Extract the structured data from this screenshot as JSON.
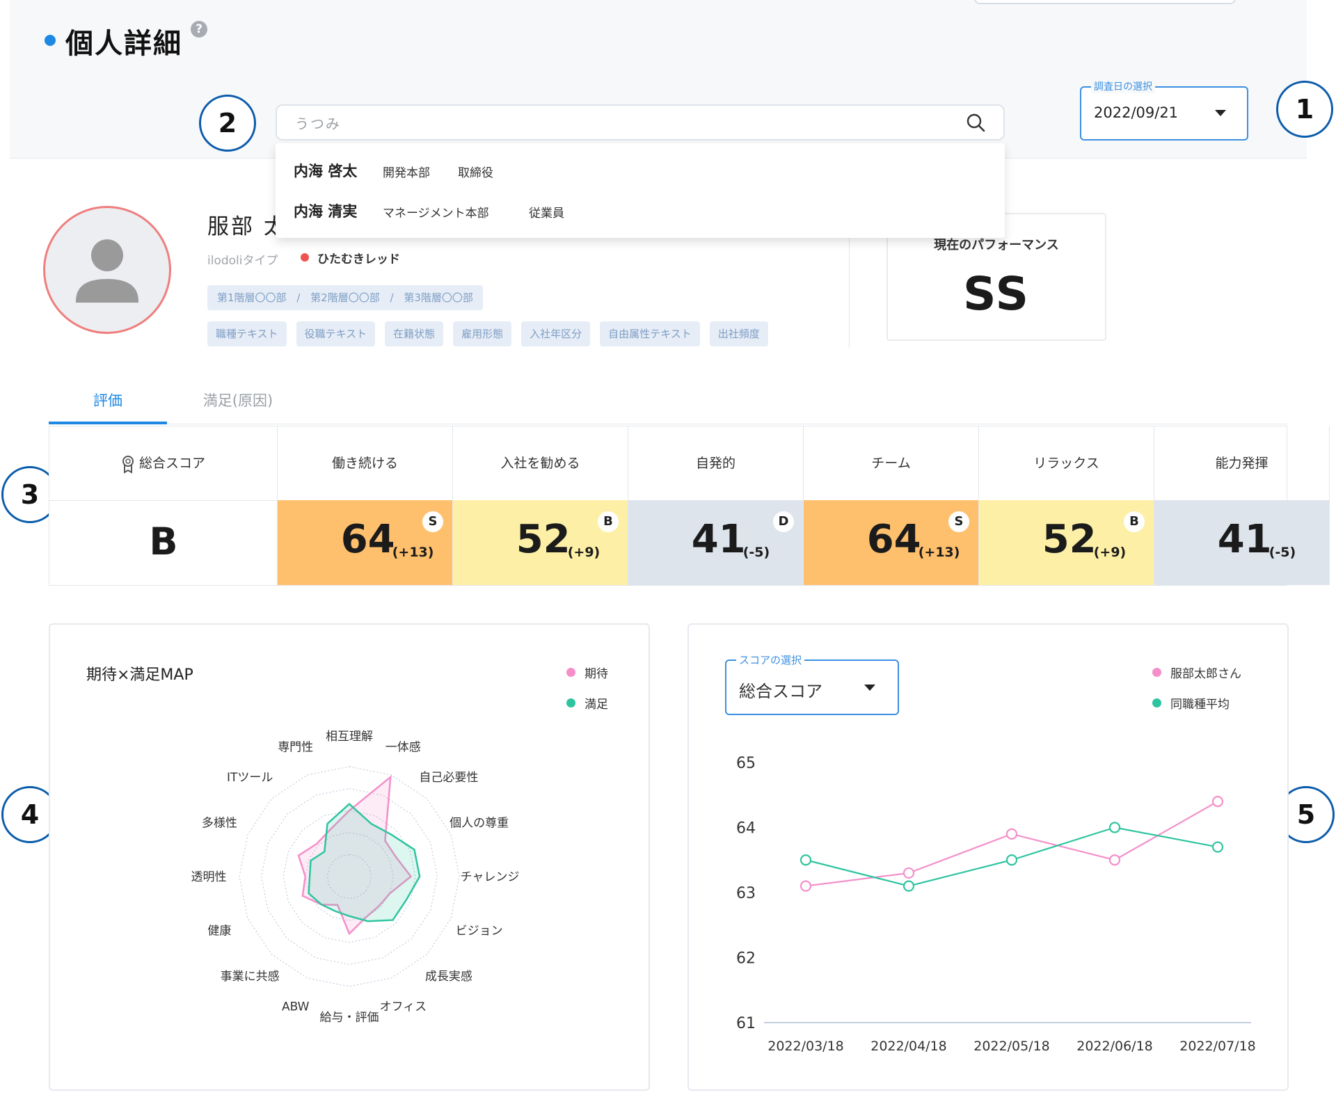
{
  "header": {
    "title": "個人詳細",
    "help_icon": "question-circle-icon"
  },
  "date_picker": {
    "legend": "調査日の選択",
    "value": "2022/09/21"
  },
  "search": {
    "placeholder": "うつみ"
  },
  "suggestions": [
    {
      "name": "内海 啓太",
      "dept": "開発本部",
      "role": "取締役"
    },
    {
      "name": "内海 清実",
      "dept": "マネージメント本部",
      "role": "従業員"
    }
  ],
  "profile": {
    "name": "服部 太",
    "type_label": "ilodoliタイプ",
    "type_value": "ひたむきレッド",
    "type_color": "#ef5350",
    "org_path": [
      "第1階層〇〇部",
      "第2階層〇〇部",
      "第3階層〇〇部"
    ],
    "tags": [
      "職種テキスト",
      "役職テキスト",
      "在籍状態",
      "雇用形態",
      "入社年区分",
      "自由属性テキスト",
      "出社頻度"
    ]
  },
  "performance": {
    "label": "現在のパフォーマンス",
    "value": "SS"
  },
  "tabs": [
    {
      "label": "評価",
      "active": true
    },
    {
      "label": "満足(原因)",
      "active": false
    }
  ],
  "scores": {
    "total": {
      "label": "総合スコア",
      "value": "B"
    },
    "items": [
      {
        "label": "働き続ける",
        "score": "64",
        "delta": "(+13)",
        "grade": "S",
        "color": "#ffc06e"
      },
      {
        "label": "入社を勧める",
        "score": "52",
        "delta": "(+9)",
        "grade": "B",
        "color": "#fdf0a6"
      },
      {
        "label": "自発的",
        "score": "41",
        "delta": "(-5)",
        "grade": "D",
        "color": "#dee4ec"
      },
      {
        "label": "チーム",
        "score": "64",
        "delta": "(+13)",
        "grade": "S",
        "color": "#ffc06e"
      },
      {
        "label": "リラックス",
        "score": "52",
        "delta": "(+9)",
        "grade": "B",
        "color": "#fdf0a6"
      },
      {
        "label": "能力発揮",
        "score": "41",
        "delta": "(-5)",
        "grade": "",
        "color": "#dee4ec"
      }
    ]
  },
  "callouts": [
    "1",
    "2",
    "3",
    "4",
    "5"
  ],
  "radar_card": {
    "title": "期待×満足MAP",
    "legend": [
      "期待",
      "満足"
    ]
  },
  "line_card": {
    "select_legend": "スコアの選択",
    "select_value": "総合スコア"
  },
  "chart_data": [
    {
      "type": "radar",
      "title": "期待×満足MAP",
      "axes": [
        "相互理解",
        "一体感",
        "自己必要性",
        "個人の尊重",
        "チャレンジ",
        "ビジョン",
        "成長実感",
        "オフィス",
        "給与・評価",
        "ABW",
        "事業に共感",
        "健康",
        "透明性",
        "多様性",
        "ITツール",
        "専門性"
      ],
      "rmax": 5,
      "series": [
        {
          "name": "期待",
          "color": "#f48fc9",
          "fill": "rgba(244,143,201,0.18)",
          "values": [
            3,
            4.9,
            2.3,
            2.3,
            2.8,
            2.0,
            1.9,
            2.0,
            2.6,
            1.4,
            1.8,
            2.3,
            2.0,
            2.5,
            2.1,
            2.3
          ]
        },
        {
          "name": "満足",
          "color": "#2ec4a0",
          "fill": "rgba(46,196,160,0.16)",
          "values": [
            3.3,
            2.6,
            2.7,
            3.2,
            3.2,
            2.8,
            2.8,
            2.2,
            1.8,
            1.7,
            1.8,
            2.0,
            1.8,
            1.9,
            1.6,
            2.6
          ]
        }
      ]
    },
    {
      "type": "line",
      "x": [
        "2022/03/18",
        "2022/04/18",
        "2022/05/18",
        "2022/06/18",
        "2022/07/18"
      ],
      "ylim": [
        61,
        65
      ],
      "yticks": [
        61,
        62,
        63,
        64,
        65
      ],
      "series": [
        {
          "name": "服部太郎さん",
          "color": "#f48fc9",
          "values": [
            63.1,
            63.3,
            63.9,
            63.5,
            64.4
          ]
        },
        {
          "name": "同職種平均",
          "color": "#2ec4a0",
          "values": [
            63.5,
            63.1,
            63.5,
            64.0,
            63.7
          ]
        }
      ]
    }
  ]
}
